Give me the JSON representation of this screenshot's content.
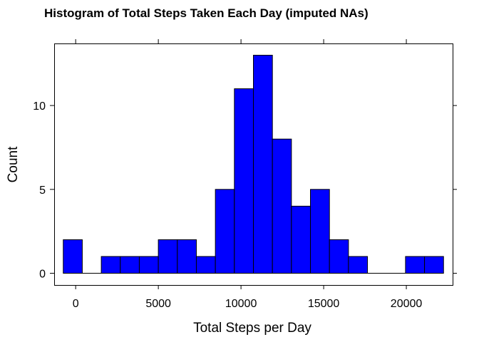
{
  "chart_data": {
    "type": "bar",
    "title": "Histogram of Total Steps Taken Each Day (imputed NAs)",
    "xlabel": "Total Steps per Day",
    "ylabel": "Count",
    "bin_width": 1150,
    "bins": [
      {
        "from": -750,
        "to": 400,
        "count": 2
      },
      {
        "from": 1550,
        "to": 2700,
        "count": 1
      },
      {
        "from": 2700,
        "to": 3850,
        "count": 1
      },
      {
        "from": 3850,
        "to": 5000,
        "count": 1
      },
      {
        "from": 5000,
        "to": 6150,
        "count": 2
      },
      {
        "from": 6150,
        "to": 7300,
        "count": 2
      },
      {
        "from": 7300,
        "to": 8450,
        "count": 1
      },
      {
        "from": 8450,
        "to": 9600,
        "count": 5
      },
      {
        "from": 9600,
        "to": 10750,
        "count": 11
      },
      {
        "from": 10750,
        "to": 11900,
        "count": 13
      },
      {
        "from": 11900,
        "to": 13050,
        "count": 8
      },
      {
        "from": 13050,
        "to": 14200,
        "count": 4
      },
      {
        "from": 14200,
        "to": 15350,
        "count": 5
      },
      {
        "from": 15350,
        "to": 16500,
        "count": 2
      },
      {
        "from": 16500,
        "to": 17650,
        "count": 1
      },
      {
        "from": 19950,
        "to": 21100,
        "count": 1
      },
      {
        "from": 21100,
        "to": 22250,
        "count": 1
      }
    ],
    "baseline_range": [
      -750,
      22250
    ],
    "xlim": [
      -1300,
      22800
    ],
    "ylim": [
      -0.7,
      13.7
    ],
    "x_ticks": [
      0,
      5000,
      10000,
      15000,
      20000
    ],
    "x_tick_labels": [
      "0",
      "5000",
      "10000",
      "15000",
      "20000"
    ],
    "y_ticks": [
      0,
      5,
      10
    ],
    "y_tick_labels": [
      "0",
      "5",
      "10"
    ],
    "colors": {
      "bar_fill": "#0000FF",
      "bar_stroke": "#000000",
      "axis": "#000000",
      "background": "#FFFFFF"
    },
    "grid": false,
    "legend": "none"
  }
}
